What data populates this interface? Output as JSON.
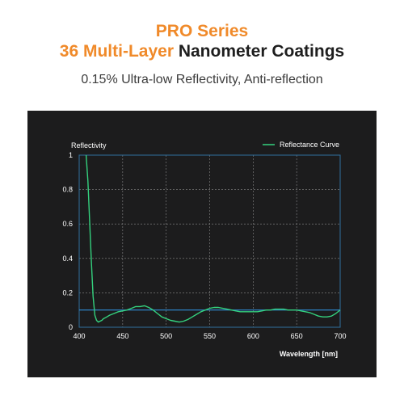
{
  "header": {
    "line1": "PRO Series",
    "line2_accent": "36 Multi-Layer",
    "line2_rest": " Nanometer Coatings",
    "subtitle": "0.15% Ultra-low Reflectivity, Anti-reflection"
  },
  "colors": {
    "accent": "#f08a2a",
    "curve": "#34d17e",
    "reference_line": "#2f8fd8",
    "panel_bg": "#1c1c1d",
    "grid": "#8a8a8a"
  },
  "chart_data": {
    "type": "line",
    "title": "",
    "xlabel": "Wavelength [nm]",
    "ylabel": "Reflectivity",
    "xlim": [
      400,
      700
    ],
    "ylim": [
      0,
      1
    ],
    "x_ticks": [
      400,
      450,
      500,
      550,
      600,
      650,
      700
    ],
    "y_ticks": [
      0,
      0.2,
      0.4,
      0.6,
      0.8,
      1
    ],
    "y_tick_labels": [
      "0",
      "0.2",
      "0.4",
      "0.6",
      "0.8",
      "1"
    ],
    "grid": true,
    "legend": "top-right",
    "series": [
      {
        "name": "Reflectance Curve",
        "x": [
          408,
          410,
          412,
          414,
          416,
          418,
          420,
          422,
          424,
          426,
          428,
          430,
          435,
          440,
          445,
          450,
          455,
          460,
          465,
          470,
          475,
          480,
          485,
          490,
          495,
          500,
          505,
          510,
          515,
          520,
          525,
          530,
          535,
          540,
          545,
          550,
          555,
          560,
          565,
          570,
          575,
          580,
          585,
          590,
          595,
          600,
          605,
          610,
          615,
          620,
          625,
          630,
          635,
          640,
          645,
          650,
          655,
          660,
          665,
          670,
          675,
          680,
          685,
          690,
          695,
          700
        ],
        "y": [
          1.0,
          0.85,
          0.62,
          0.38,
          0.18,
          0.07,
          0.04,
          0.03,
          0.035,
          0.04,
          0.05,
          0.055,
          0.07,
          0.08,
          0.09,
          0.095,
          0.1,
          0.11,
          0.12,
          0.12,
          0.125,
          0.115,
          0.1,
          0.08,
          0.06,
          0.05,
          0.04,
          0.035,
          0.03,
          0.035,
          0.045,
          0.06,
          0.075,
          0.09,
          0.1,
          0.11,
          0.115,
          0.115,
          0.11,
          0.105,
          0.1,
          0.095,
          0.09,
          0.09,
          0.09,
          0.09,
          0.09,
          0.095,
          0.1,
          0.1,
          0.105,
          0.105,
          0.105,
          0.1,
          0.1,
          0.1,
          0.095,
          0.09,
          0.085,
          0.075,
          0.065,
          0.06,
          0.06,
          0.065,
          0.08,
          0.1
        ]
      },
      {
        "name": "",
        "role": "reference-line",
        "x": [
          400,
          700
        ],
        "y": [
          0.1,
          0.1
        ]
      }
    ]
  }
}
